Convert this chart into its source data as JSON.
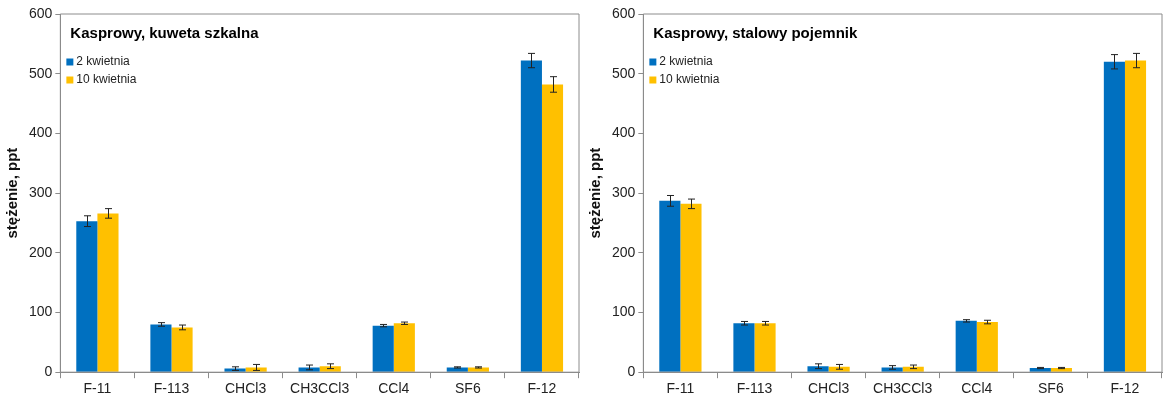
{
  "chart_data": [
    {
      "type": "bar",
      "title": "Kasprowy, kuweta szkalna",
      "ylabel": "stężenie, ppt",
      "categories": [
        "F-11",
        "F-113",
        "CHCl3",
        "CH3CCl3",
        "CCl4",
        "SF6",
        "F-12"
      ],
      "series": [
        {
          "name": "2 kwietnia",
          "color": "#0070c0",
          "values": [
            253,
            80,
            6,
            8,
            78,
            8,
            522
          ],
          "errors": [
            9,
            3,
            3,
            4,
            2,
            1,
            12
          ]
        },
        {
          "name": "10 kwietnia",
          "color": "#ffc000",
          "values": [
            266,
            75,
            8,
            10,
            82,
            8,
            482
          ],
          "errors": [
            8,
            4,
            5,
            4,
            2,
            1,
            13
          ]
        }
      ],
      "ylim": [
        0,
        600
      ],
      "yticks": [
        0,
        100,
        200,
        300,
        400,
        500,
        600
      ],
      "grid": false,
      "legend": "top left"
    },
    {
      "type": "bar",
      "title": "Kasprowy, stalowy pojemnik",
      "ylabel": "stężenie, ppt",
      "categories": [
        "F-11",
        "F-113",
        "CHCl3",
        "CH3CCl3",
        "CCl4",
        "SF6",
        "F-12"
      ],
      "series": [
        {
          "name": "2 kwietnia",
          "color": "#0070c0",
          "values": [
            287,
            82,
            10,
            8,
            86,
            7,
            520
          ],
          "errors": [
            9,
            3,
            4,
            3,
            2,
            1,
            12
          ]
        },
        {
          "name": "10 kwietnia",
          "color": "#ffc000",
          "values": [
            282,
            82,
            9,
            9,
            84,
            7,
            522
          ],
          "errors": [
            8,
            3,
            4,
            3,
            3,
            1,
            12
          ]
        }
      ],
      "ylim": [
        0,
        600
      ],
      "yticks": [
        0,
        100,
        200,
        300,
        400,
        500,
        600
      ],
      "grid": false,
      "legend": "top left"
    }
  ]
}
